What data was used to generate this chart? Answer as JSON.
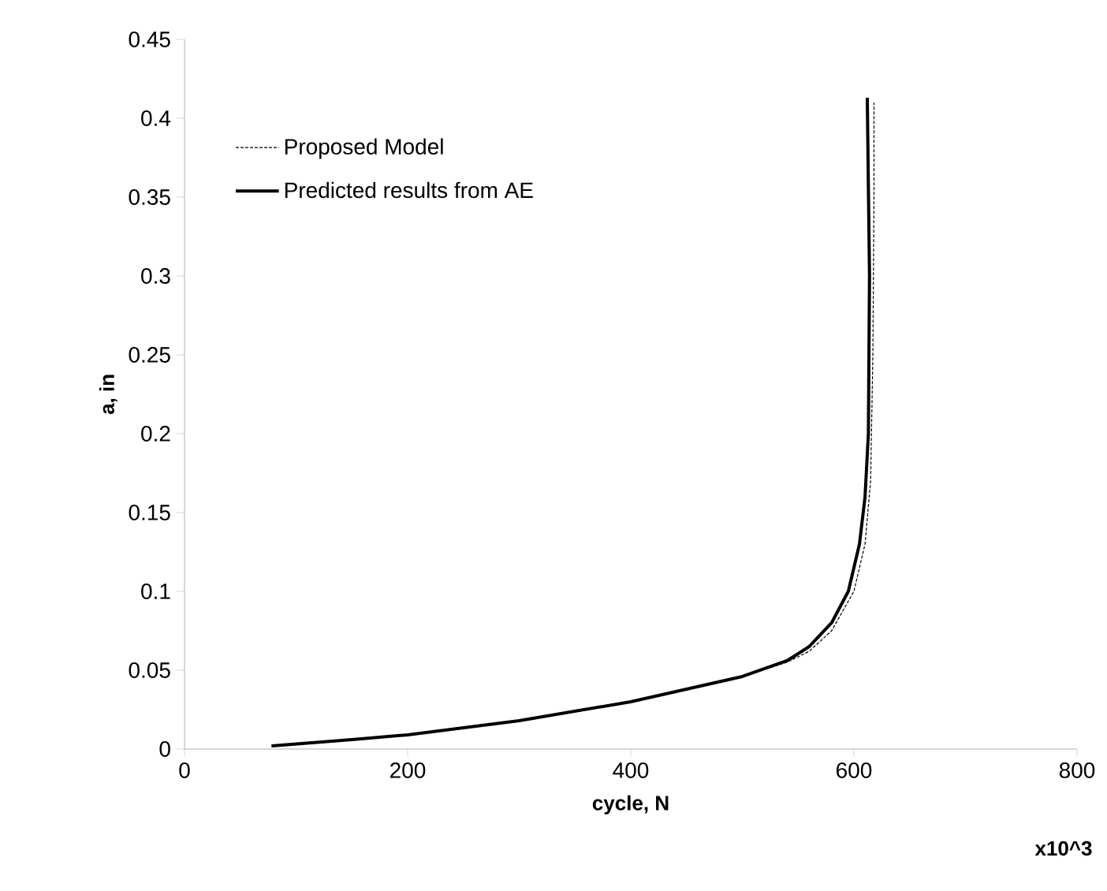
{
  "chart_data": {
    "type": "line",
    "xlabel": "cycle, N",
    "ylabel": "a, in",
    "annotations": [
      "x10^3"
    ],
    "xlim": [
      0,
      800
    ],
    "xticks": [
      0,
      200,
      400,
      600,
      800
    ],
    "ylim": [
      0,
      0.45
    ],
    "yticks": [
      0,
      0.05,
      0.1,
      0.15,
      0.2,
      0.25,
      0.3,
      0.35,
      0.4,
      0.45
    ],
    "legend": "top left",
    "marker": "none",
    "series": [
      {
        "name": "Proposed Model",
        "color": "#000000",
        "line_style": "dashed",
        "x": [
          78,
          150,
          200,
          300,
          400,
          500,
          540,
          560,
          580,
          600,
          610,
          615,
          617,
          618,
          618
        ],
        "values": [
          0.002,
          0.006,
          0.009,
          0.018,
          0.03,
          0.046,
          0.055,
          0.062,
          0.075,
          0.1,
          0.13,
          0.17,
          0.25,
          0.35,
          0.41
        ]
      },
      {
        "name": "Predicted results from AE",
        "color": "#000000",
        "line_style": "solid",
        "x": [
          78,
          150,
          200,
          300,
          400,
          500,
          540,
          560,
          580,
          595,
          605,
          610,
          613,
          614,
          612
        ],
        "values": [
          0.002,
          0.006,
          0.009,
          0.018,
          0.03,
          0.046,
          0.056,
          0.065,
          0.08,
          0.1,
          0.13,
          0.16,
          0.2,
          0.3,
          0.413
        ]
      }
    ]
  }
}
